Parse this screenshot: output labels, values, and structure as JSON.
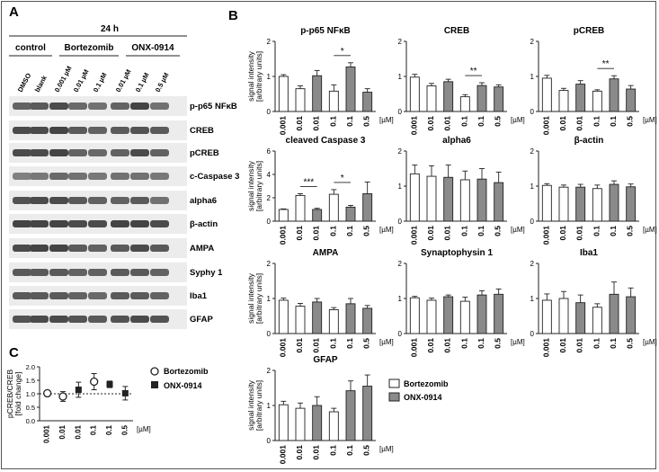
{
  "panels": {
    "A": "A",
    "B": "B",
    "C": "C"
  },
  "blot": {
    "timepoint": "24 h",
    "groups": [
      "control",
      "Bortezomib",
      "ONX-0914"
    ],
    "lanes": [
      "DMSO",
      "blank",
      "0.001 µM",
      "0.01 µM",
      "0.1 µM",
      "0.01 µM",
      "0.1 µM",
      "0.5 µM"
    ],
    "bands": [
      "p-p65 NFκB",
      "CREB",
      "pCREB",
      "c-Caspase 3",
      "alpha6",
      "β-actin",
      "AMPA",
      "Syphy 1",
      "Iba1",
      "GFAP"
    ]
  },
  "colors": {
    "bortezomib_bar": "#ffffff",
    "onx_bar": "#8a8a8a",
    "axis": "#222222"
  },
  "legend_b": [
    "Bortezomib",
    "ONX-0914"
  ],
  "legend_c": [
    "Bortezomib",
    "ONX-0914"
  ],
  "chart_data": [
    {
      "panel": "B",
      "type": "bar",
      "title": "p-p65 NFκB",
      "ylabel": "signal intensity [arbitrary units]",
      "xlabel_unit": "[µM]",
      "categories": [
        "0.001",
        "0.01",
        "0.01",
        "0.1",
        "0.1",
        "0.5"
      ],
      "series_of_bar": [
        "Bortezomib",
        "Bortezomib",
        "ONX-0914",
        "Bortezomib",
        "ONX-0914",
        "ONX-0914"
      ],
      "values": [
        1.0,
        0.65,
        1.02,
        0.58,
        1.27,
        0.55
      ],
      "errors": [
        0.05,
        0.08,
        0.15,
        0.18,
        0.12,
        0.1
      ],
      "ylim": [
        0,
        2
      ],
      "yticks": [
        0,
        1,
        2
      ],
      "significance": [
        {
          "from": 3,
          "to": 4,
          "label": "*"
        }
      ]
    },
    {
      "panel": "B",
      "type": "bar",
      "title": "CREB",
      "ylabel": "",
      "xlabel_unit": "[µM]",
      "categories": [
        "0.001",
        "0.01",
        "0.01",
        "0.1",
        "0.1",
        "0.5"
      ],
      "series_of_bar": [
        "Bortezomib",
        "Bortezomib",
        "ONX-0914",
        "Bortezomib",
        "ONX-0914",
        "ONX-0914"
      ],
      "values": [
        0.98,
        0.73,
        0.85,
        0.42,
        0.74,
        0.7
      ],
      "errors": [
        0.08,
        0.07,
        0.07,
        0.06,
        0.08,
        0.06
      ],
      "ylim": [
        0,
        2
      ],
      "yticks": [
        0,
        1,
        2
      ],
      "significance": [
        {
          "from": 3,
          "to": 4,
          "label": "**"
        }
      ]
    },
    {
      "panel": "B",
      "type": "bar",
      "title": "pCREB",
      "ylabel": "",
      "xlabel_unit": "[µM]",
      "categories": [
        "0.001",
        "0.01",
        "0.01",
        "0.1",
        "0.1",
        "0.5"
      ],
      "series_of_bar": [
        "Bortezomib",
        "Bortezomib",
        "ONX-0914",
        "Bortezomib",
        "ONX-0914",
        "ONX-0914"
      ],
      "values": [
        0.95,
        0.6,
        0.78,
        0.58,
        0.93,
        0.64
      ],
      "errors": [
        0.08,
        0.06,
        0.1,
        0.04,
        0.09,
        0.1
      ],
      "ylim": [
        0,
        2
      ],
      "yticks": [
        0,
        1,
        2
      ],
      "significance": [
        {
          "from": 3,
          "to": 4,
          "label": "**"
        }
      ]
    },
    {
      "panel": "B",
      "type": "bar",
      "title": "cleaved Caspase 3",
      "ylabel": "signal intensity [arbitrary units]",
      "xlabel_unit": "[µM]",
      "categories": [
        "0.001",
        "0.01",
        "0.01",
        "0.1",
        "0.1",
        "0.5"
      ],
      "series_of_bar": [
        "Bortezomib",
        "Bortezomib",
        "ONX-0914",
        "Bortezomib",
        "ONX-0914",
        "ONX-0914"
      ],
      "values": [
        1.0,
        2.2,
        1.0,
        2.3,
        1.2,
        2.35
      ],
      "errors": [
        0.05,
        0.15,
        0.1,
        0.4,
        0.15,
        1.0
      ],
      "ylim": [
        0,
        6
      ],
      "yticks": [
        0,
        2,
        4,
        6
      ],
      "significance": [
        {
          "from": 1,
          "to": 2,
          "label": "***"
        },
        {
          "from": 3,
          "to": 4,
          "label": "*"
        }
      ]
    },
    {
      "panel": "B",
      "type": "bar",
      "title": "alpha6",
      "ylabel": "",
      "xlabel_unit": "[µM]",
      "categories": [
        "0.001",
        "0.01",
        "0.01",
        "0.1",
        "0.1",
        "0.5"
      ],
      "series_of_bar": [
        "Bortezomib",
        "Bortezomib",
        "ONX-0914",
        "Bortezomib",
        "ONX-0914",
        "ONX-0914"
      ],
      "values": [
        1.35,
        1.28,
        1.25,
        1.18,
        1.2,
        1.1
      ],
      "errors": [
        0.25,
        0.3,
        0.35,
        0.25,
        0.3,
        0.3
      ],
      "ylim": [
        0,
        2
      ],
      "yticks": [
        0,
        1,
        2
      ],
      "significance": []
    },
    {
      "panel": "B",
      "type": "bar",
      "title": "β-actin",
      "ylabel": "",
      "xlabel_unit": "[µM]",
      "categories": [
        "0.001",
        "0.01",
        "0.01",
        "0.1",
        "0.1",
        "0.5"
      ],
      "series_of_bar": [
        "Bortezomib",
        "Bortezomib",
        "ONX-0914",
        "Bortezomib",
        "ONX-0914",
        "ONX-0914"
      ],
      "values": [
        1.02,
        0.97,
        0.97,
        0.93,
        1.05,
        0.98
      ],
      "errors": [
        0.05,
        0.06,
        0.08,
        0.1,
        0.1,
        0.08
      ],
      "ylim": [
        0,
        2
      ],
      "yticks": [
        0,
        1,
        2
      ],
      "significance": []
    },
    {
      "panel": "B",
      "type": "bar",
      "title": "AMPA",
      "ylabel": "signal intensity [arbitrary units]",
      "xlabel_unit": "[µM]",
      "categories": [
        "0.001",
        "0.01",
        "0.01",
        "0.1",
        "0.1",
        "0.5"
      ],
      "series_of_bar": [
        "Bortezomib",
        "Bortezomib",
        "ONX-0914",
        "Bortezomib",
        "ONX-0914",
        "ONX-0914"
      ],
      "values": [
        0.95,
        0.78,
        0.9,
        0.68,
        0.85,
        0.72
      ],
      "errors": [
        0.06,
        0.08,
        0.1,
        0.06,
        0.15,
        0.08
      ],
      "ylim": [
        0,
        2
      ],
      "yticks": [
        0,
        1,
        2
      ],
      "significance": []
    },
    {
      "panel": "B",
      "type": "bar",
      "title": "Synaptophysin 1",
      "ylabel": "",
      "xlabel_unit": "[µM]",
      "categories": [
        "0.001",
        "0.01",
        "0.01",
        "0.1",
        "0.1",
        "0.5"
      ],
      "series_of_bar": [
        "Bortezomib",
        "Bortezomib",
        "ONX-0914",
        "Bortezomib",
        "ONX-0914",
        "ONX-0914"
      ],
      "values": [
        1.02,
        0.95,
        1.05,
        0.92,
        1.1,
        1.12
      ],
      "errors": [
        0.04,
        0.06,
        0.05,
        0.12,
        0.12,
        0.15
      ],
      "ylim": [
        0,
        2
      ],
      "yticks": [
        0,
        1,
        2
      ],
      "significance": []
    },
    {
      "panel": "B",
      "type": "bar",
      "title": "Iba1",
      "ylabel": "",
      "xlabel_unit": "[µM]",
      "categories": [
        "0.001",
        "0.01",
        "0.01",
        "0.1",
        "0.1",
        "0.5"
      ],
      "series_of_bar": [
        "Bortezomib",
        "Bortezomib",
        "ONX-0914",
        "Bortezomib",
        "ONX-0914",
        "ONX-0914"
      ],
      "values": [
        0.95,
        1.0,
        0.88,
        0.75,
        1.12,
        1.05
      ],
      "errors": [
        0.18,
        0.2,
        0.22,
        0.1,
        0.35,
        0.25
      ],
      "ylim": [
        0,
        2
      ],
      "yticks": [
        0,
        1,
        2
      ],
      "significance": []
    },
    {
      "panel": "B",
      "type": "bar",
      "title": "GFAP",
      "ylabel": "signal intensity [arbitrary units]",
      "xlabel_unit": "[µM]",
      "categories": [
        "0.001",
        "0.01",
        "0.01",
        "0.1",
        "0.1",
        "0.5"
      ],
      "series_of_bar": [
        "Bortezomib",
        "Bortezomib",
        "ONX-0914",
        "Bortezomib",
        "ONX-0914",
        "ONX-0914"
      ],
      "values": [
        1.02,
        0.92,
        1.0,
        0.82,
        1.42,
        1.55
      ],
      "errors": [
        0.1,
        0.15,
        0.25,
        0.1,
        0.28,
        0.32
      ],
      "ylim": [
        0,
        2
      ],
      "yticks": [
        0,
        1,
        2
      ],
      "significance": []
    },
    {
      "panel": "C",
      "type": "scatter",
      "title": "",
      "ylabel": "pCREB/CREB [fold change]",
      "xlabel_unit": "[µM]",
      "categories": [
        "0.001",
        "0.01",
        "0.01",
        "0.1",
        "0.1",
        "0.5"
      ],
      "series_of_point": [
        "Bortezomib",
        "Bortezomib",
        "ONX-0914",
        "Bortezomib",
        "ONX-0914",
        "ONX-0914"
      ],
      "values": [
        1.02,
        0.9,
        1.15,
        1.45,
        1.35,
        1.02
      ],
      "errors": [
        0.1,
        0.18,
        0.28,
        0.3,
        0.12,
        0.25
      ],
      "ylim": [
        0,
        2
      ],
      "yticks": [
        0.0,
        0.5,
        1.0,
        1.5,
        2.0
      ],
      "reference_line": 1.0
    }
  ]
}
